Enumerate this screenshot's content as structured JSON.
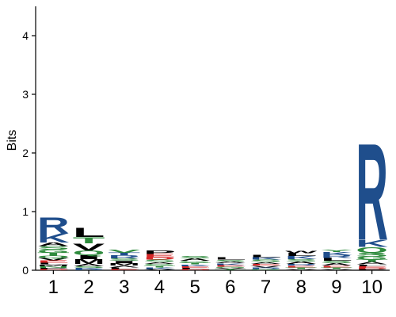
{
  "chart_data": {
    "type": "sequence-logo",
    "ylabel": "Bits",
    "ylim": [
      0,
      4.5
    ],
    "y_ticks": [
      "0",
      "1",
      "2",
      "3",
      "4"
    ],
    "positions": [
      {
        "label": "1",
        "letters": [
          {
            "char": "R",
            "bits": 0.28,
            "color": "#1f4e8c"
          },
          {
            "char": "K",
            "bits": 0.16,
            "color": "#1f4e8c"
          },
          {
            "char": "A",
            "bits": 0.06,
            "color": "#000000"
          },
          {
            "char": "S",
            "bits": 0.06,
            "color": "#2e8b3d"
          },
          {
            "char": "G",
            "bits": 0.05,
            "color": "#2e8b3d"
          },
          {
            "char": "T",
            "bits": 0.05,
            "color": "#2e8b3d"
          },
          {
            "char": "Q",
            "bits": 0.04,
            "color": "#2e8b3d"
          },
          {
            "char": "V",
            "bits": 0.04,
            "color": "#000000"
          },
          {
            "char": "E",
            "bits": 0.04,
            "color": "#d62728"
          },
          {
            "char": "L",
            "bits": 0.03,
            "color": "#000000"
          },
          {
            "char": "M",
            "bits": 0.03,
            "color": "#000000"
          },
          {
            "char": "N",
            "bits": 0.03,
            "color": "#2e8b3d"
          },
          {
            "char": "P",
            "bits": 0.02,
            "color": "#000000"
          },
          {
            "char": "D",
            "bits": 0.02,
            "color": "#d62728"
          }
        ]
      },
      {
        "label": "2",
        "letters": [
          {
            "char": "L",
            "bits": 0.16,
            "color": "#000000"
          },
          {
            "char": "T",
            "bits": 0.11,
            "color": "#2e8b3d"
          },
          {
            "char": "V",
            "bits": 0.12,
            "color": "#000000"
          },
          {
            "char": "Q",
            "bits": 0.08,
            "color": "#2e8b3d"
          },
          {
            "char": "I",
            "bits": 0.07,
            "color": "#000000"
          },
          {
            "char": "M",
            "bits": 0.08,
            "color": "#000000"
          },
          {
            "char": "A",
            "bits": 0.04,
            "color": "#000000"
          },
          {
            "char": "S",
            "bits": 0.03,
            "color": "#2e8b3d"
          },
          {
            "char": "K",
            "bits": 0.02,
            "color": "#1f4e8c"
          },
          {
            "char": "R",
            "bits": 0.02,
            "color": "#1f4e8c"
          }
        ]
      },
      {
        "label": "3",
        "letters": [
          {
            "char": "V",
            "bits": 0.05,
            "color": "#2e8b3d"
          },
          {
            "char": "T",
            "bits": 0.05,
            "color": "#1f4e8c"
          },
          {
            "char": "R",
            "bits": 0.05,
            "color": "#1f4e8c"
          },
          {
            "char": "S",
            "bits": 0.04,
            "color": "#2e8b3d"
          },
          {
            "char": "I",
            "bits": 0.04,
            "color": "#000000"
          },
          {
            "char": "M",
            "bits": 0.04,
            "color": "#000000"
          },
          {
            "char": "A",
            "bits": 0.03,
            "color": "#000000"
          },
          {
            "char": "L",
            "bits": 0.03,
            "color": "#000000"
          },
          {
            "char": "E",
            "bits": 0.02,
            "color": "#d62728"
          }
        ]
      },
      {
        "label": "4",
        "letters": [
          {
            "char": "P",
            "bits": 0.06,
            "color": "#000000"
          },
          {
            "char": "E",
            "bits": 0.06,
            "color": "#d62728"
          },
          {
            "char": "D",
            "bits": 0.04,
            "color": "#d62728"
          },
          {
            "char": "S",
            "bits": 0.04,
            "color": "#2e8b3d"
          },
          {
            "char": "A",
            "bits": 0.03,
            "color": "#000000"
          },
          {
            "char": "G",
            "bits": 0.03,
            "color": "#2e8b3d"
          },
          {
            "char": "T",
            "bits": 0.03,
            "color": "#2e8b3d"
          },
          {
            "char": "K",
            "bits": 0.03,
            "color": "#1f4e8c"
          },
          {
            "char": "V",
            "bits": 0.02,
            "color": "#000000"
          }
        ]
      },
      {
        "label": "5",
        "letters": [
          {
            "char": "S",
            "bits": 0.04,
            "color": "#2e8b3d"
          },
          {
            "char": "A",
            "bits": 0.04,
            "color": "#000000"
          },
          {
            "char": "G",
            "bits": 0.03,
            "color": "#2e8b3d"
          },
          {
            "char": "T",
            "bits": 0.03,
            "color": "#2e8b3d"
          },
          {
            "char": "K",
            "bits": 0.03,
            "color": "#1f4e8c"
          },
          {
            "char": "E",
            "bits": 0.03,
            "color": "#d62728"
          },
          {
            "char": "L",
            "bits": 0.02,
            "color": "#000000"
          },
          {
            "char": "D",
            "bits": 0.02,
            "color": "#d62728"
          }
        ]
      },
      {
        "label": "6",
        "letters": [
          {
            "char": "L",
            "bits": 0.04,
            "color": "#000000"
          },
          {
            "char": "S",
            "bits": 0.03,
            "color": "#2e8b3d"
          },
          {
            "char": "A",
            "bits": 0.03,
            "color": "#000000"
          },
          {
            "char": "K",
            "bits": 0.03,
            "color": "#1f4e8c"
          },
          {
            "char": "E",
            "bits": 0.03,
            "color": "#d62728"
          },
          {
            "char": "G",
            "bits": 0.02,
            "color": "#2e8b3d"
          },
          {
            "char": "V",
            "bits": 0.02,
            "color": "#000000"
          },
          {
            "char": "T",
            "bits": 0.02,
            "color": "#2e8b3d"
          }
        ]
      },
      {
        "label": "7",
        "letters": [
          {
            "char": "L",
            "bits": 0.04,
            "color": "#000000"
          },
          {
            "char": "K",
            "bits": 0.04,
            "color": "#1f4e8c"
          },
          {
            "char": "S",
            "bits": 0.04,
            "color": "#2e8b3d"
          },
          {
            "char": "A",
            "bits": 0.03,
            "color": "#000000"
          },
          {
            "char": "E",
            "bits": 0.03,
            "color": "#d62728"
          },
          {
            "char": "V",
            "bits": 0.03,
            "color": "#000000"
          },
          {
            "char": "R",
            "bits": 0.03,
            "color": "#1f4e8c"
          },
          {
            "char": "G",
            "bits": 0.02,
            "color": "#2e8b3d"
          }
        ]
      },
      {
        "label": "8",
        "letters": [
          {
            "char": "W",
            "bits": 0.04,
            "color": "#000000"
          },
          {
            "char": "L",
            "bits": 0.05,
            "color": "#000000"
          },
          {
            "char": "K",
            "bits": 0.05,
            "color": "#1f4e8c"
          },
          {
            "char": "S",
            "bits": 0.04,
            "color": "#2e8b3d"
          },
          {
            "char": "A",
            "bits": 0.04,
            "color": "#000000"
          },
          {
            "char": "R",
            "bits": 0.03,
            "color": "#1f4e8c"
          },
          {
            "char": "E",
            "bits": 0.03,
            "color": "#d62728"
          },
          {
            "char": "T",
            "bits": 0.03,
            "color": "#2e8b3d"
          },
          {
            "char": "V",
            "bits": 0.02,
            "color": "#000000"
          }
        ]
      },
      {
        "label": "9",
        "letters": [
          {
            "char": "Y",
            "bits": 0.04,
            "color": "#2e8b3d"
          },
          {
            "char": "K",
            "bits": 0.05,
            "color": "#1f4e8c"
          },
          {
            "char": "R",
            "bits": 0.05,
            "color": "#1f4e8c"
          },
          {
            "char": "L",
            "bits": 0.05,
            "color": "#000000"
          },
          {
            "char": "S",
            "bits": 0.04,
            "color": "#2e8b3d"
          },
          {
            "char": "A",
            "bits": 0.04,
            "color": "#000000"
          },
          {
            "char": "E",
            "bits": 0.03,
            "color": "#d62728"
          },
          {
            "char": "T",
            "bits": 0.03,
            "color": "#2e8b3d"
          },
          {
            "char": "V",
            "bits": 0.02,
            "color": "#000000"
          }
        ]
      },
      {
        "label": "10",
        "letters": [
          {
            "char": "R",
            "bits": 1.7,
            "color": "#1f4e8c"
          },
          {
            "char": "K",
            "bits": 0.12,
            "color": "#1f4e8c"
          },
          {
            "char": "Q",
            "bits": 0.1,
            "color": "#2e8b3d"
          },
          {
            "char": "S",
            "bits": 0.07,
            "color": "#2e8b3d"
          },
          {
            "char": "G",
            "bits": 0.05,
            "color": "#2e8b3d"
          },
          {
            "char": "T",
            "bits": 0.04,
            "color": "#2e8b3d"
          },
          {
            "char": "A",
            "bits": 0.04,
            "color": "#000000"
          },
          {
            "char": "L",
            "bits": 0.03,
            "color": "#000000"
          },
          {
            "char": "E",
            "bits": 0.03,
            "color": "#d62728"
          },
          {
            "char": "D",
            "bits": 0.02,
            "color": "#d62728"
          },
          {
            "char": "P",
            "bits": 0.02,
            "color": "#000000"
          }
        ]
      }
    ]
  }
}
